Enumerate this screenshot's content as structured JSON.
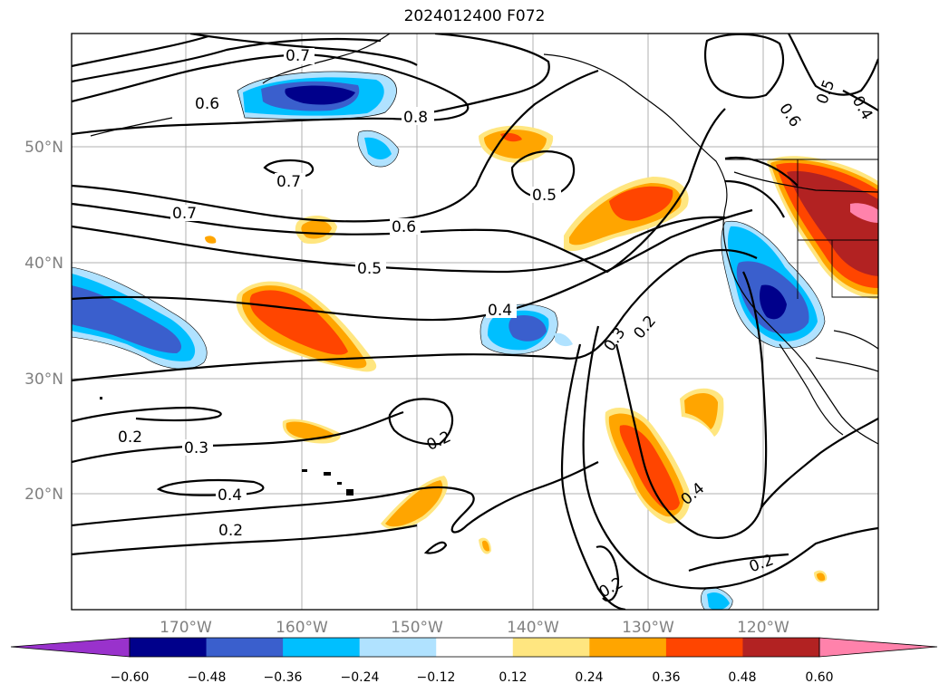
{
  "title": "2024012400 F072",
  "chart_data": {
    "type": "map",
    "title": "2024012400 F072",
    "lon_ticks": [
      "170°W",
      "160°W",
      "150°W",
      "140°W",
      "130°W",
      "120°W"
    ],
    "lat_ticks": [
      "50°N",
      "40°N",
      "30°N",
      "20°N"
    ],
    "contour_labels": [
      "0.8",
      "0.7",
      "0.6",
      "0.7",
      "0.7",
      "0.6",
      "0.5",
      "0.5",
      "0.4",
      "0.3",
      "0.2",
      "0.2",
      "0.3",
      "0.4",
      "0.2",
      "0.2",
      "0.2",
      "0.4",
      "0.2",
      "0.6",
      "0.5",
      "0.4"
    ],
    "colorbar": {
      "ticks": [
        "−0.60",
        "−0.48",
        "−0.36",
        "−0.24",
        "−0.12",
        "0.12",
        "0.24",
        "0.36",
        "0.48",
        "0.60"
      ],
      "colors": [
        "#9932cc",
        "#00008b",
        "#3a5fcd",
        "#00bfff",
        "#b0e2ff",
        "#ffffff",
        "#ffe680",
        "#ffa500",
        "#ff4500",
        "#b22222",
        "#ff82ab"
      ],
      "extend": "both"
    }
  }
}
